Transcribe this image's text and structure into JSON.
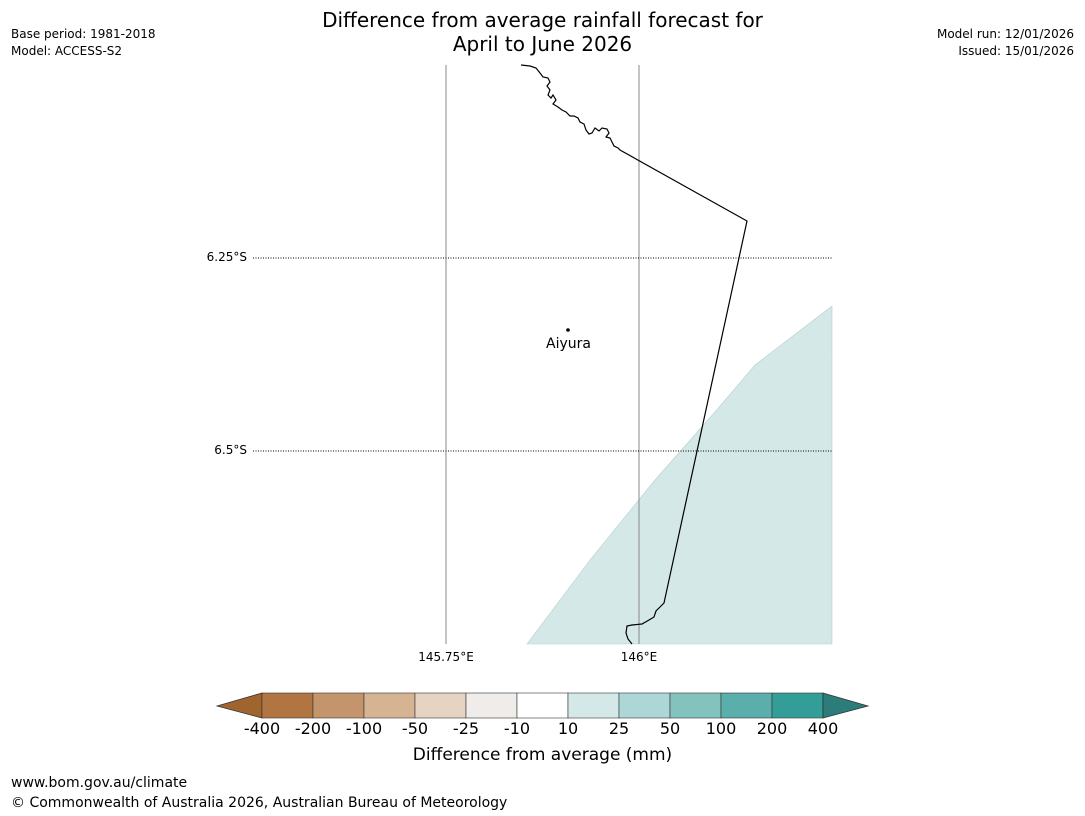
{
  "header": {
    "title_line1": "Difference from average rainfall forecast for",
    "title_line2": "April to June 2026",
    "base_period": "Base period: 1981-2018",
    "model": "Model: ACCESS-S2",
    "model_run": "Model run: 12/01/2026",
    "issued": "Issued: 15/01/2026"
  },
  "map": {
    "lat_labels": [
      "6.25°S",
      "6.5°S"
    ],
    "lon_labels": [
      "145.75°E",
      "146°E"
    ],
    "place": {
      "name": "Aiyura"
    }
  },
  "colorbar": {
    "title": "Difference from average (mm)",
    "ticks": [
      "-400",
      "-200",
      "-100",
      "-50",
      "-25",
      "-10",
      "10",
      "25",
      "50",
      "100",
      "200",
      "400"
    ],
    "colors": [
      "#a0652f",
      "#b07540",
      "#c4956c",
      "#d6b393",
      "#e6d3c2",
      "#efecea",
      "#ffffff",
      "#d4e8e8",
      "#add7d6",
      "#84c2be",
      "#5aaeab",
      "#339e98",
      "#2c7d79"
    ]
  },
  "footer": {
    "url": "www.bom.gov.au/climate",
    "copyright": "© Commonwealth of Australia 2026, Australian Bureau of Meteorology"
  }
}
